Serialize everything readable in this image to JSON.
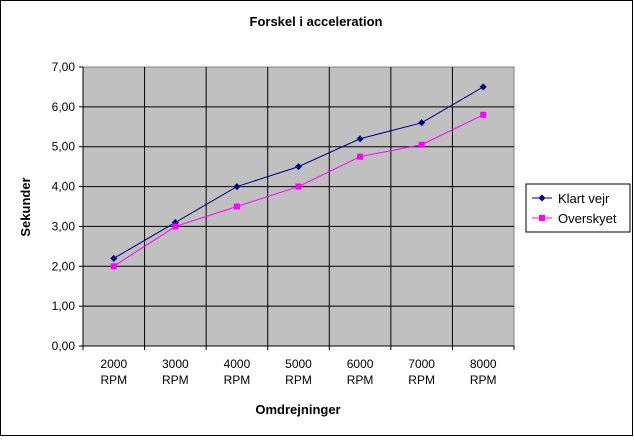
{
  "chart_data": {
    "type": "line",
    "title": "Forskel i acceleration",
    "xlabel": "Omdrejninger",
    "ylabel": "Sekunder",
    "categories": [
      "2000 RPM",
      "3000 RPM",
      "4000 RPM",
      "5000 RPM",
      "6000 RPM",
      "7000 RPM",
      "8000 RPM"
    ],
    "category_lines": [
      [
        "2000",
        "RPM"
      ],
      [
        "3000",
        "RPM"
      ],
      [
        "4000",
        "RPM"
      ],
      [
        "5000",
        "RPM"
      ],
      [
        "6000",
        "RPM"
      ],
      [
        "7000",
        "RPM"
      ],
      [
        "8000",
        "RPM"
      ]
    ],
    "ylim": [
      0,
      7
    ],
    "yticks": [
      "0,00",
      "1,00",
      "2,00",
      "3,00",
      "4,00",
      "5,00",
      "6,00",
      "7,00"
    ],
    "grid": true,
    "legend_position": "right",
    "series": [
      {
        "name": "Klart vejr",
        "color": "#000080",
        "marker": "diamond",
        "values": [
          2.2,
          3.1,
          4.0,
          4.5,
          5.2,
          5.6,
          6.5
        ]
      },
      {
        "name": "Overskyet",
        "color": "#ff00ff",
        "marker": "square",
        "values": [
          2.0,
          3.0,
          3.5,
          4.0,
          4.75,
          5.05,
          5.8
        ]
      }
    ],
    "colors": {
      "plot_background": "#c0c0c0",
      "grid": "#000000"
    }
  }
}
